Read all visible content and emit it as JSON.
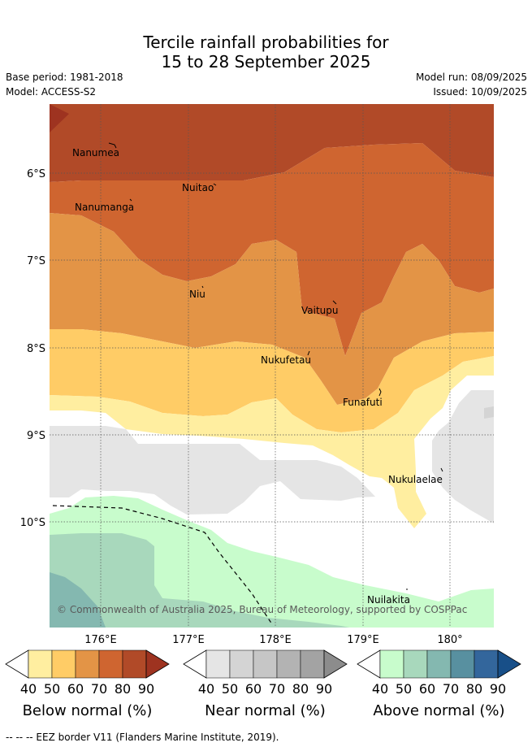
{
  "title_line1": "Tercile rainfall probabilities for",
  "title_line2": "15 to 28 September 2025",
  "base_period": "Base period: 1981-2018",
  "model": "Model: ACCESS-S2",
  "model_run": "Model run: 08/09/2025",
  "issued": "Issued: 10/09/2025",
  "attribution": "© Commonwealth of Australia 2025, Bureau of Meteorology, supported by COSPPac",
  "footnote": "-- -- -- EEZ border V11 (Flanders Marine Institute, 2019).",
  "lat_labels": [
    "6°S",
    "7°S",
    "8°S",
    "9°S",
    "10°S"
  ],
  "lon_labels": [
    "176°E",
    "177°E",
    "178°E",
    "179°E",
    "180°"
  ],
  "places": [
    "Nanumea",
    "Nuitao",
    "Nanumanga",
    "Niu",
    "Vaitupu",
    "Nukufetau",
    "Funafuti",
    "Nukulaelae",
    "Nuilakita"
  ],
  "colorbars": [
    {
      "label": "Below normal (%)",
      "ticks": [
        "40",
        "50",
        "60",
        "70",
        "80",
        "90"
      ],
      "colors": [
        "#ffeea0",
        "#ffcc66",
        "#e39446",
        "#cf6530",
        "#b14a28",
        "#9e3320"
      ]
    },
    {
      "label": "Near normal (%)",
      "ticks": [
        "40",
        "50",
        "60",
        "70",
        "80",
        "90"
      ],
      "colors": [
        "#e5e5e5",
        "#d4d4d4",
        "#c6c6c6",
        "#b3b3b3",
        "#a3a3a3",
        "#8c8c8c"
      ]
    },
    {
      "label": "Above normal (%)",
      "ticks": [
        "40",
        "50",
        "60",
        "70",
        "80",
        "90"
      ],
      "colors": [
        "#c8fccc",
        "#a8d8bc",
        "#84b8b0",
        "#5890a0",
        "#33669c",
        "#184f88"
      ]
    }
  ]
}
